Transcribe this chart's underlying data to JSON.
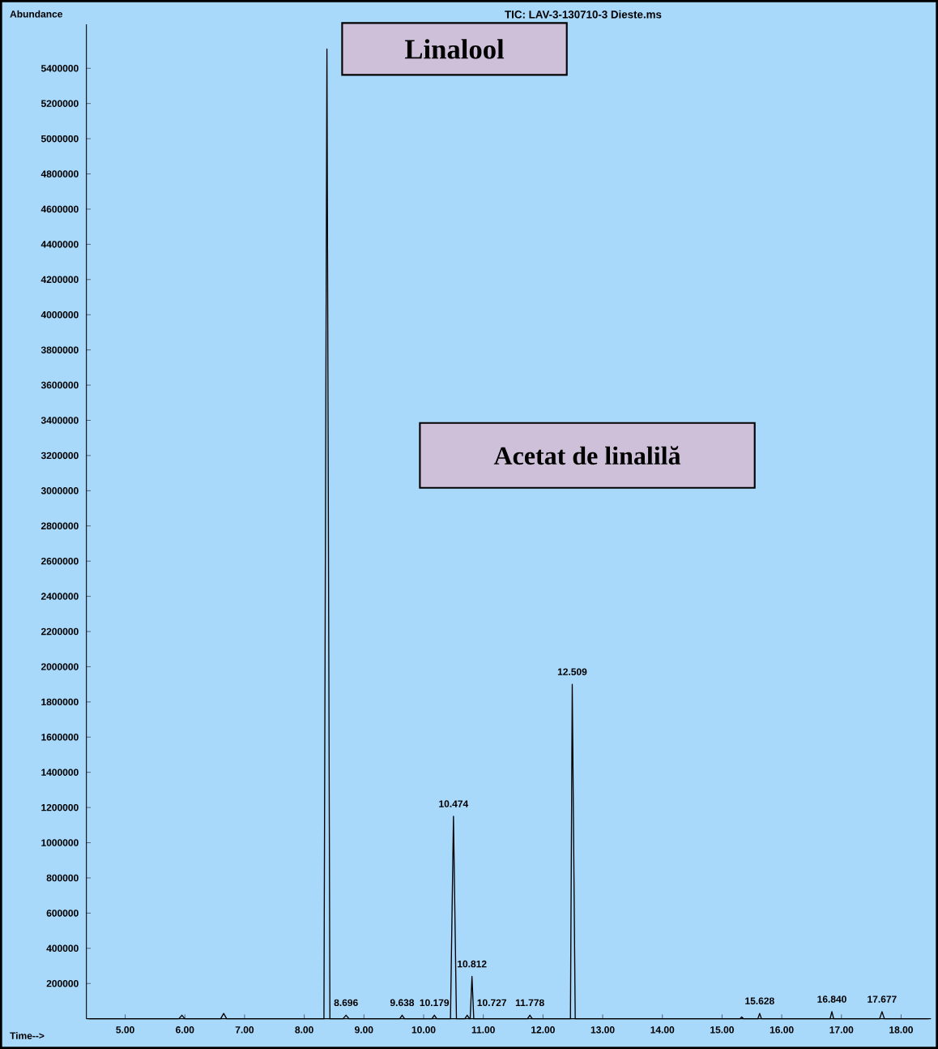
{
  "chart_data": {
    "type": "line",
    "title": "TIC: LAV-3-130710-3 Dieste.ms",
    "xlabel": "Time-->",
    "ylabel": "Abundance",
    "x": [
      4.4,
      5.9,
      5.95,
      6.0,
      6.6,
      6.65,
      6.7,
      8.33,
      8.38,
      8.43,
      8.65,
      8.7,
      8.75,
      9.6,
      9.64,
      9.68,
      10.14,
      10.18,
      10.22,
      10.45,
      10.5,
      10.55,
      10.69,
      10.73,
      10.77,
      10.78,
      10.81,
      10.84,
      11.74,
      11.78,
      11.82,
      12.46,
      12.49,
      12.54,
      15.3,
      15.33,
      15.36,
      15.6,
      15.63,
      15.66,
      16.81,
      16.84,
      16.87,
      17.64,
      17.68,
      17.72,
      18.45
    ],
    "series": [
      {
        "color": "#000000",
        "values": [
          0,
          0,
          20000,
          0,
          0,
          30000,
          0,
          0,
          5510000,
          0,
          0,
          20000,
          0,
          0,
          20000,
          0,
          0,
          20000,
          0,
          0,
          1150000,
          0,
          0,
          20000,
          0,
          0,
          240000,
          0,
          0,
          20000,
          0,
          0,
          1900000,
          0,
          0,
          10000,
          0,
          0,
          30000,
          0,
          0,
          40000,
          0,
          0,
          40000,
          0,
          0
        ]
      }
    ],
    "xlim": [
      4.35,
      18.5
    ],
    "xticks": [
      {
        "value": 5,
        "label": "5.00"
      },
      {
        "value": 6,
        "label": "6.00"
      },
      {
        "value": 7,
        "label": "7.00"
      },
      {
        "value": 8,
        "label": "8.00"
      },
      {
        "value": 9,
        "label": "9.00"
      },
      {
        "value": 10,
        "label": "10.00"
      },
      {
        "value": 11,
        "label": "11.00"
      },
      {
        "value": 12,
        "label": "12.00"
      },
      {
        "value": 13,
        "label": "13.00"
      },
      {
        "value": 14,
        "label": "14.00"
      },
      {
        "value": 15,
        "label": "15.00"
      },
      {
        "value": 16,
        "label": "16.00"
      },
      {
        "value": 17,
        "label": "17.00"
      },
      {
        "value": 18,
        "label": "18.00"
      }
    ],
    "ylim": [
      0,
      5650000
    ],
    "yticks": [
      200000,
      400000,
      600000,
      800000,
      1000000,
      1200000,
      1400000,
      1600000,
      1800000,
      2000000,
      2200000,
      2400000,
      2600000,
      2800000,
      3000000,
      3200000,
      3400000,
      3600000,
      3800000,
      4000000,
      4200000,
      4400000,
      4600000,
      4800000,
      5000000,
      5200000,
      5400000
    ],
    "grid": false,
    "marker": "none",
    "line_style": "solid",
    "annotations": [
      "Linalool",
      "Acetat de linalilă",
      {
        "text": "8.696",
        "x": 8.7,
        "y": 20000
      },
      {
        "text": "9.638",
        "x": 9.64,
        "y": 20000
      },
      {
        "text": "10.179",
        "x": 10.18,
        "y": 20000
      },
      {
        "text": "10.474",
        "x": 10.5,
        "y": 1150000
      },
      {
        "text": "10.727",
        "x": 10.73,
        "y": 20000
      },
      {
        "text": "10.812",
        "x": 10.81,
        "y": 240000
      },
      {
        "text": "11.778",
        "x": 11.78,
        "y": 20000
      },
      {
        "text": "12.509",
        "x": 12.49,
        "y": 1900000
      },
      {
        "text": "15.628",
        "x": 15.63,
        "y": 30000
      },
      {
        "text": "16.840",
        "x": 16.84,
        "y": 40000
      },
      {
        "text": "17.677",
        "x": 17.68,
        "y": 40000
      }
    ]
  }
}
